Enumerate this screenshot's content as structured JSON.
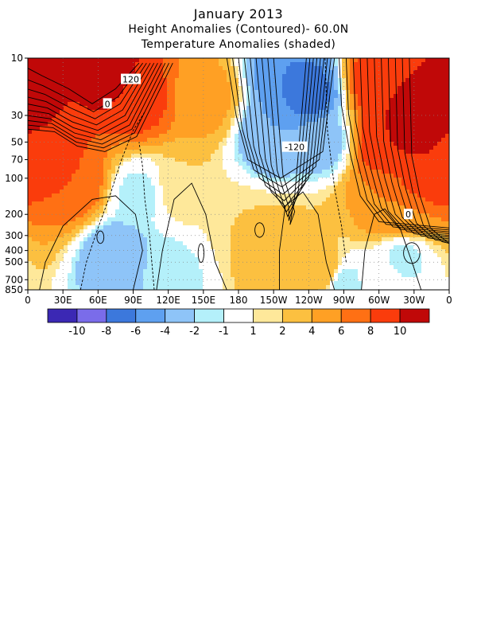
{
  "chart_data": {
    "type": "heatmap",
    "title": "January 2013",
    "subtitle": "Height Anomalies (Contoured)- 60.0N",
    "subtitle2": "Temperature Anomalies (shaded)",
    "x_ticks": [
      "0",
      "30E",
      "60E",
      "90E",
      "120E",
      "150E",
      "180",
      "150W",
      "120W",
      "90W",
      "60W",
      "30W",
      "0"
    ],
    "x_tick_degrees": [
      0,
      30,
      60,
      90,
      120,
      150,
      180,
      210,
      240,
      270,
      300,
      330,
      360
    ],
    "y_ticks": [
      "10",
      "30",
      "50",
      "70",
      "100",
      "200",
      "300",
      "400",
      "500",
      "700",
      "850"
    ],
    "y_tick_values": [
      10,
      30,
      50,
      70,
      100,
      200,
      300,
      400,
      500,
      700,
      850
    ],
    "xlim": [
      0,
      360
    ],
    "ylim": [
      850,
      10
    ],
    "y_scale": "log",
    "y_quantity": "pressure (hPa)",
    "grid": "dotted",
    "colorbar": {
      "labels": [
        "-10",
        "-8",
        "-6",
        "-4",
        "-2",
        "-1",
        "1",
        "2",
        "4",
        "6",
        "8",
        "10"
      ],
      "colors": [
        "#3b28b4",
        "#7a6cea",
        "#3c78dc",
        "#5ea0f0",
        "#8ec4f8",
        "#b4f0fa",
        "#ffffff",
        "#fee89a",
        "#fcc040",
        "#ffa024",
        "#ff7014",
        "#fa3c0c",
        "#c00808"
      ]
    },
    "contour_labels": [
      "120",
      "0",
      "-120",
      "0"
    ],
    "temperature_anomaly_centers": [
      {
        "lon": 0,
        "p": 25,
        "value": 11
      },
      {
        "lon": 15,
        "p": 60,
        "value": 9
      },
      {
        "lon": 40,
        "p": 110,
        "value": 8
      },
      {
        "lon": 70,
        "p": 14,
        "value": 11
      },
      {
        "lon": 95,
        "p": 22,
        "value": 9
      },
      {
        "lon": 150,
        "p": 22,
        "value": 5
      },
      {
        "lon": 130,
        "p": 120,
        "value": 2
      },
      {
        "lon": 95,
        "p": 140,
        "value": -1.5
      },
      {
        "lon": 75,
        "p": 450,
        "value": -4
      },
      {
        "lon": 120,
        "p": 600,
        "value": -1.5
      },
      {
        "lon": 190,
        "p": 260,
        "value": 2
      },
      {
        "lon": 225,
        "p": 14,
        "value": -6
      },
      {
        "lon": 210,
        "p": 45,
        "value": -4
      },
      {
        "lon": 250,
        "p": 50,
        "value": -3
      },
      {
        "lon": 240,
        "p": 20,
        "value": -7
      },
      {
        "lon": 215,
        "p": 400,
        "value": 4
      },
      {
        "lon": 250,
        "p": 300,
        "value": 2
      },
      {
        "lon": 255,
        "p": 600,
        "value": 3
      },
      {
        "lon": 300,
        "p": 16,
        "value": 10
      },
      {
        "lon": 305,
        "p": 50,
        "value": 10
      },
      {
        "lon": 330,
        "p": 35,
        "value": 11
      },
      {
        "lon": 340,
        "p": 90,
        "value": 10
      },
      {
        "lon": 300,
        "p": 160,
        "value": 6
      },
      {
        "lon": 320,
        "p": 210,
        "value": 6
      },
      {
        "lon": 320,
        "p": 450,
        "value": -1.5
      },
      {
        "lon": 270,
        "p": 750,
        "value": -2
      },
      {
        "lon": 300,
        "p": 700,
        "value": 0.5
      }
    ]
  }
}
